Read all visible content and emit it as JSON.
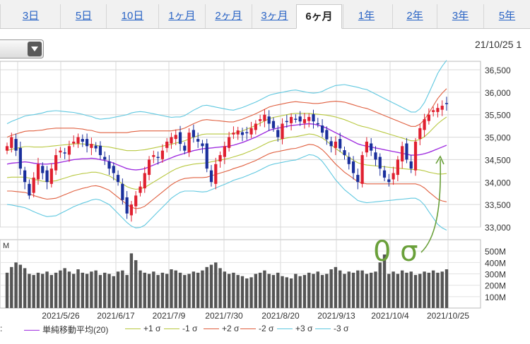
{
  "tabs": [
    "3日",
    "5日",
    "10日",
    "1ヶ月",
    "2ヶ月",
    "3ヶ月",
    "6ヶ月",
    "1年",
    "2年",
    "3年",
    "5年"
  ],
  "active_tab": "6ヶ月",
  "date_label": "21/10/25 1",
  "annotation": "0 σ",
  "legend_prefix": ":",
  "legend": [
    {
      "label": "単純移動平均(20)",
      "color": "#a030e0"
    },
    {
      "label": "+1 σ",
      "color": "#b8c840"
    },
    {
      "label": "-1 σ",
      "color": "#b8c840"
    },
    {
      "label": "+2 σ",
      "color": "#e06040"
    },
    {
      "label": "-2 σ",
      "color": "#e06040"
    },
    {
      "label": "+3 σ",
      "color": "#60c8e0"
    },
    {
      "label": "-3 σ",
      "color": "#60c8e0"
    }
  ],
  "colors": {
    "up": "#e02030",
    "down": "#1a2f9c",
    "volume": "#555555",
    "annotation": "#6aa03a"
  },
  "chart_data": {
    "type": "candlestick",
    "price_axis": {
      "ylim": [
        33000,
        36500
      ],
      "ticks": [
        "36,500",
        "36,000",
        "35,500",
        "35,000",
        "34,500",
        "34,000",
        "33,500",
        "33,000"
      ]
    },
    "volume_axis": {
      "unit": "M",
      "ylim": [
        0,
        600
      ],
      "ticks": [
        "500M",
        "400M",
        "300M",
        "200M",
        "100M"
      ]
    },
    "x_tick_labels": [
      "2021/5/26",
      "2021/6/17",
      "2021/7/9",
      "2021/7/30",
      "2021/8/20",
      "2021/9/13",
      "2021/10/4",
      "2021/10/25"
    ],
    "series": {
      "close": [
        34800,
        35000,
        34700,
        34300,
        34000,
        33700,
        34100,
        34400,
        34200,
        34000,
        34300,
        34600,
        34700,
        34650,
        34800,
        34900,
        35000,
        34900,
        34800,
        34850,
        34750,
        34600,
        34500,
        34300,
        34200,
        34000,
        33600,
        33300,
        33500,
        33700,
        33900,
        34200,
        34500,
        34600,
        34550,
        34700,
        34900,
        35000,
        35050,
        34850,
        34700,
        35100,
        35000,
        34900,
        34800,
        34300,
        34000,
        34400,
        34600,
        34800,
        35000,
        35100,
        35150,
        35050,
        35100,
        35200,
        35300,
        35400,
        35500,
        35300,
        35200,
        35000,
        35300,
        35350,
        35450,
        35400,
        35350,
        35400,
        35450,
        35350,
        35300,
        35100,
        34950,
        34800,
        34900,
        34750,
        34600,
        34400,
        34200,
        34000,
        34600,
        34900,
        34700,
        34500,
        34300,
        34100,
        34000,
        34200,
        34500,
        34800,
        34500,
        34300,
        34900,
        35200,
        35400,
        35500,
        35600,
        35650,
        35700,
        35750
      ],
      "ma20": [
        34400,
        34420,
        34430,
        34440,
        34450,
        34440,
        34420,
        34410,
        34400,
        34400,
        34410,
        34420,
        34440,
        34460,
        34480,
        34500,
        34510,
        34520,
        34520,
        34530,
        34520,
        34500,
        34480,
        34460,
        34420,
        34380,
        34340,
        34300,
        34280,
        34270,
        34280,
        34300,
        34340,
        34380,
        34420,
        34460,
        34500,
        34540,
        34580,
        34610,
        34640,
        34670,
        34700,
        34720,
        34740,
        34750,
        34760,
        34770,
        34780,
        34790,
        34800,
        34820,
        34850,
        34880,
        34920,
        34960,
        35000,
        35050,
        35100,
        35150,
        35180,
        35200,
        35220,
        35240,
        35260,
        35270,
        35280,
        35290,
        35300,
        35290,
        35270,
        35240,
        35200,
        35150,
        35100,
        35050,
        35000,
        34950,
        34900,
        34850,
        34820,
        34800,
        34780,
        34760,
        34740,
        34720,
        34700,
        34680,
        34660,
        34640,
        34620,
        34600,
        34600,
        34610,
        34630,
        34660,
        34700,
        34740,
        34780,
        34820
      ],
      "sigma": [
        300,
        310,
        320,
        330,
        340,
        350,
        360,
        370,
        380,
        390,
        390,
        390,
        380,
        370,
        360,
        350,
        340,
        330,
        320,
        310,
        300,
        300,
        310,
        320,
        340,
        360,
        380,
        400,
        420,
        430,
        430,
        420,
        400,
        380,
        360,
        340,
        320,
        300,
        290,
        280,
        280,
        290,
        300,
        310,
        320,
        320,
        310,
        300,
        290,
        280,
        270,
        260,
        260,
        260,
        260,
        260,
        260,
        260,
        260,
        260,
        260,
        260,
        260,
        260,
        260,
        260,
        250,
        240,
        230,
        230,
        240,
        260,
        290,
        320,
        350,
        370,
        390,
        400,
        410,
        420,
        420,
        420,
        410,
        400,
        390,
        380,
        370,
        360,
        350,
        340,
        330,
        320,
        320,
        340,
        380,
        440,
        500,
        560,
        600,
        630
      ],
      "volume": [
        310,
        360,
        400,
        380,
        350,
        300,
        290,
        310,
        300,
        320,
        290,
        310,
        330,
        350,
        320,
        300,
        340,
        310,
        300,
        320,
        330,
        290,
        310,
        300,
        280,
        320,
        330,
        290,
        480,
        420,
        330,
        310,
        300,
        320,
        290,
        310,
        300,
        340,
        330,
        310,
        290,
        300,
        320,
        310,
        330,
        360,
        380,
        400,
        350,
        320,
        300,
        310,
        290,
        280,
        260,
        270,
        300,
        310,
        330,
        300,
        290,
        310,
        280,
        270,
        260,
        300,
        280,
        290,
        310,
        300,
        320,
        290,
        300,
        340,
        360,
        330,
        300,
        320,
        310,
        330,
        330,
        300,
        310,
        320,
        400,
        470,
        300,
        320,
        300,
        330,
        310,
        320,
        290,
        300,
        320,
        310,
        330,
        310,
        320,
        340
      ]
    }
  }
}
